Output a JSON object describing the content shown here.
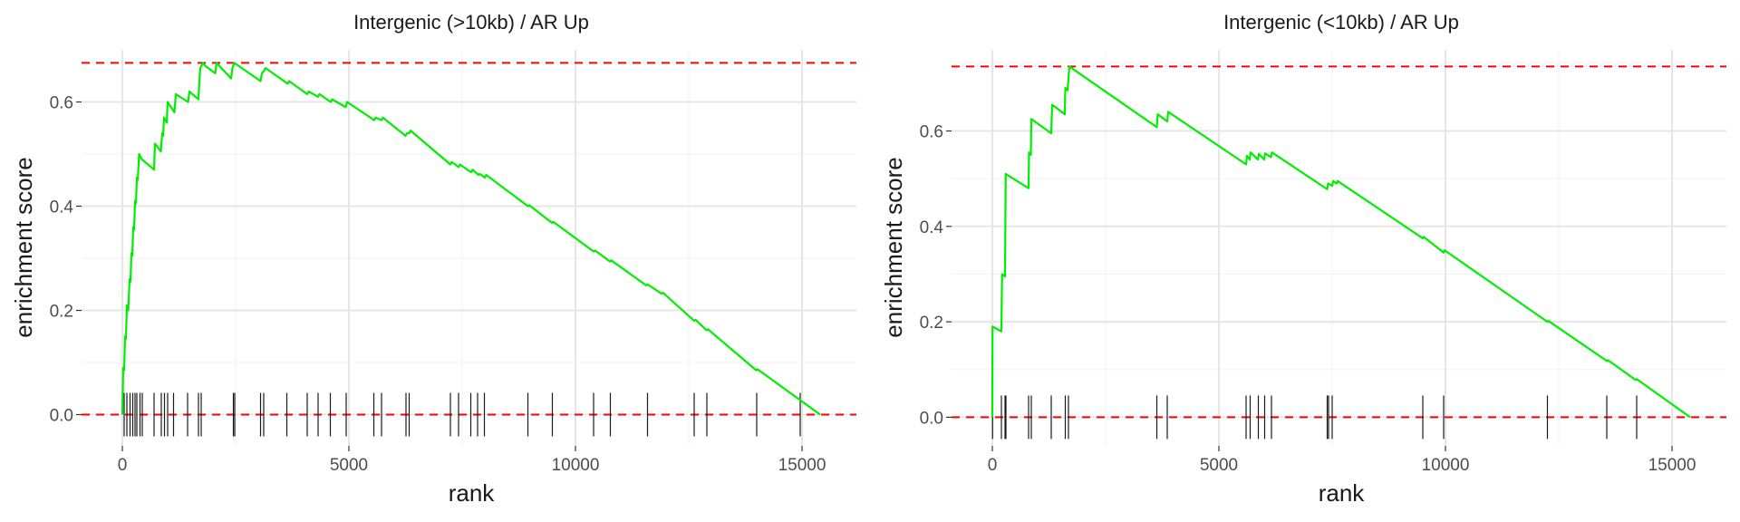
{
  "chart_data": [
    {
      "type": "line",
      "title": "Intergenic (>10kb) / AR Up",
      "xlabel": "rank",
      "ylabel": "enrichment score",
      "xlim": [
        -900,
        16200
      ],
      "ylim": [
        -0.06,
        0.7
      ],
      "xticks": [
        0,
        5000,
        10000,
        15000
      ],
      "yticks": [
        0.0,
        0.2,
        0.4,
        0.6
      ],
      "ytick_labels": [
        "0.0",
        "0.2",
        "0.4",
        "0.6"
      ],
      "grid": true,
      "max_es": 0.675,
      "min_es": 0.0,
      "line_color": "#00ee00",
      "reference_line_color": "#ff0000",
      "rug_color": "#1a1a1a",
      "series": [
        {
          "x": [
            0,
            20,
            40,
            60,
            80,
            100,
            110,
            130,
            160,
            180,
            200,
            220,
            240,
            260,
            280,
            300,
            320,
            340,
            370,
            400,
            430,
            700,
            720,
            850,
            880,
            900,
            920,
            980,
            1000,
            1150,
            1180,
            1450,
            1480,
            1680,
            1700,
            1720,
            1780,
            1820,
            2050,
            2080,
            2400,
            2430,
            2470,
            3050,
            3080,
            3130,
            3160,
            3650,
            3680,
            4080,
            4110,
            4320,
            4350,
            4600,
            4630,
            4930,
            4960,
            5560,
            5590,
            5720,
            5750,
            6250,
            6280,
            6330,
            6360,
            7240,
            7270,
            7420,
            7450,
            7700,
            7730,
            7860,
            7890,
            8000,
            8030,
            8950,
            8980,
            9480,
            9510,
            10400,
            10430,
            10760,
            10790,
            11560,
            11590,
            11900,
            11930,
            12620,
            12650,
            12890,
            12920,
            13990,
            14020,
            15400
          ],
          "y": [
            0.0,
            0.09,
            0.085,
            0.15,
            0.145,
            0.21,
            0.205,
            0.2,
            0.26,
            0.255,
            0.31,
            0.305,
            0.36,
            0.355,
            0.41,
            0.405,
            0.455,
            0.45,
            0.5,
            0.495,
            0.49,
            0.47,
            0.52,
            0.505,
            0.54,
            0.535,
            0.57,
            0.56,
            0.6,
            0.58,
            0.615,
            0.6,
            0.62,
            0.605,
            0.64,
            0.665,
            0.675,
            0.67,
            0.655,
            0.675,
            0.645,
            0.665,
            0.675,
            0.64,
            0.655,
            0.66,
            0.665,
            0.635,
            0.64,
            0.615,
            0.62,
            0.61,
            0.615,
            0.6,
            0.605,
            0.59,
            0.6,
            0.565,
            0.57,
            0.565,
            0.57,
            0.535,
            0.54,
            0.54,
            0.545,
            0.48,
            0.485,
            0.475,
            0.48,
            0.465,
            0.47,
            0.46,
            0.462,
            0.455,
            0.46,
            0.4,
            0.402,
            0.368,
            0.37,
            0.313,
            0.315,
            0.294,
            0.296,
            0.248,
            0.25,
            0.232,
            0.234,
            0.18,
            0.182,
            0.162,
            0.164,
            0.085,
            0.087,
            0.0
          ]
        }
      ],
      "hits": [
        40,
        100,
        170,
        230,
        280,
        320,
        390,
        440,
        700,
        860,
        930,
        1000,
        1130,
        1440,
        1680,
        1740,
        2450,
        2480,
        3050,
        3120,
        3630,
        4080,
        4320,
        4590,
        4940,
        5550,
        5720,
        6260,
        6330,
        7240,
        7420,
        7690,
        7840,
        7990,
        8950,
        9490,
        10400,
        10770,
        11590,
        12620,
        12900,
        14000,
        14960
      ]
    },
    {
      "type": "line",
      "title": "Intergenic (<10kb) / AR Up",
      "xlabel": "rank",
      "ylabel": "enrichment score",
      "xlim": [
        -900,
        16200
      ],
      "ylim": [
        -0.06,
        0.77
      ],
      "xticks": [
        0,
        5000,
        10000,
        15000
      ],
      "yticks": [
        0.0,
        0.2,
        0.4,
        0.6
      ],
      "ytick_labels": [
        "0.0",
        "0.2",
        "0.4",
        "0.6"
      ],
      "grid": true,
      "max_es": 0.735,
      "min_es": 0.0,
      "line_color": "#00ee00",
      "reference_line_color": "#ff0000",
      "rug_color": "#1a1a1a",
      "series": [
        {
          "x": [
            0,
            5,
            200,
            215,
            280,
            295,
            800,
            810,
            850,
            860,
            1300,
            1320,
            1600,
            1610,
            1660,
            1700,
            3630,
            3650,
            3860,
            3880,
            5600,
            5620,
            5680,
            5700,
            5860,
            5880,
            6000,
            6020,
            6150,
            6170,
            7390,
            7410,
            7500,
            7520,
            7600,
            7620,
            9500,
            9520,
            9960,
            9980,
            12250,
            12270,
            13560,
            13580,
            14200,
            14220,
            15400
          ],
          "y": [
            0.0,
            0.19,
            0.18,
            0.3,
            0.295,
            0.51,
            0.48,
            0.555,
            0.55,
            0.625,
            0.595,
            0.655,
            0.635,
            0.69,
            0.685,
            0.735,
            0.608,
            0.635,
            0.62,
            0.64,
            0.53,
            0.548,
            0.54,
            0.555,
            0.54,
            0.552,
            0.54,
            0.553,
            0.545,
            0.555,
            0.478,
            0.49,
            0.485,
            0.495,
            0.49,
            0.495,
            0.375,
            0.378,
            0.345,
            0.35,
            0.2,
            0.202,
            0.118,
            0.12,
            0.078,
            0.08,
            0.0
          ]
        }
      ],
      "hits": [
        5,
        200,
        280,
        300,
        800,
        860,
        1300,
        1610,
        1680,
        3630,
        3860,
        5600,
        5690,
        5870,
        6010,
        6160,
        7390,
        7420,
        7500,
        9500,
        9960,
        12250,
        13560,
        14220
      ]
    }
  ]
}
